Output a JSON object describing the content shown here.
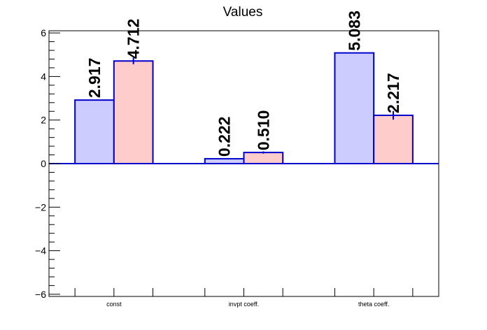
{
  "chart_data": {
    "type": "bar",
    "title": "Values",
    "xlabel": "",
    "ylabel": "",
    "categories": [
      "const",
      "invpt coeff.",
      "theta coeff."
    ],
    "series": [
      {
        "values": [
          2.917,
          0.222,
          5.083
        ],
        "labels": [
          "2.917",
          "0.222",
          "5.083"
        ],
        "errors": [
          0.0,
          0.0,
          0.0
        ],
        "fill": "#ccccff",
        "stroke": "#0000cc"
      },
      {
        "values": [
          4.712,
          0.51,
          2.217
        ],
        "labels": [
          "4.712",
          "0.510",
          "2.217"
        ],
        "errors": [
          0.15,
          0.05,
          0.2
        ],
        "fill": "#ffcccc",
        "stroke": "#0000cc"
      }
    ],
    "ylim": [
      -6.1,
      6.1
    ],
    "yticks": [
      -6,
      -4,
      -2,
      0,
      2,
      4,
      6
    ],
    "ytick_labels": [
      "−6",
      "−4",
      "−2",
      "0",
      "2",
      "4",
      "6"
    ],
    "grid": false,
    "legend": "none",
    "zero_line_color": "#0000cc"
  }
}
